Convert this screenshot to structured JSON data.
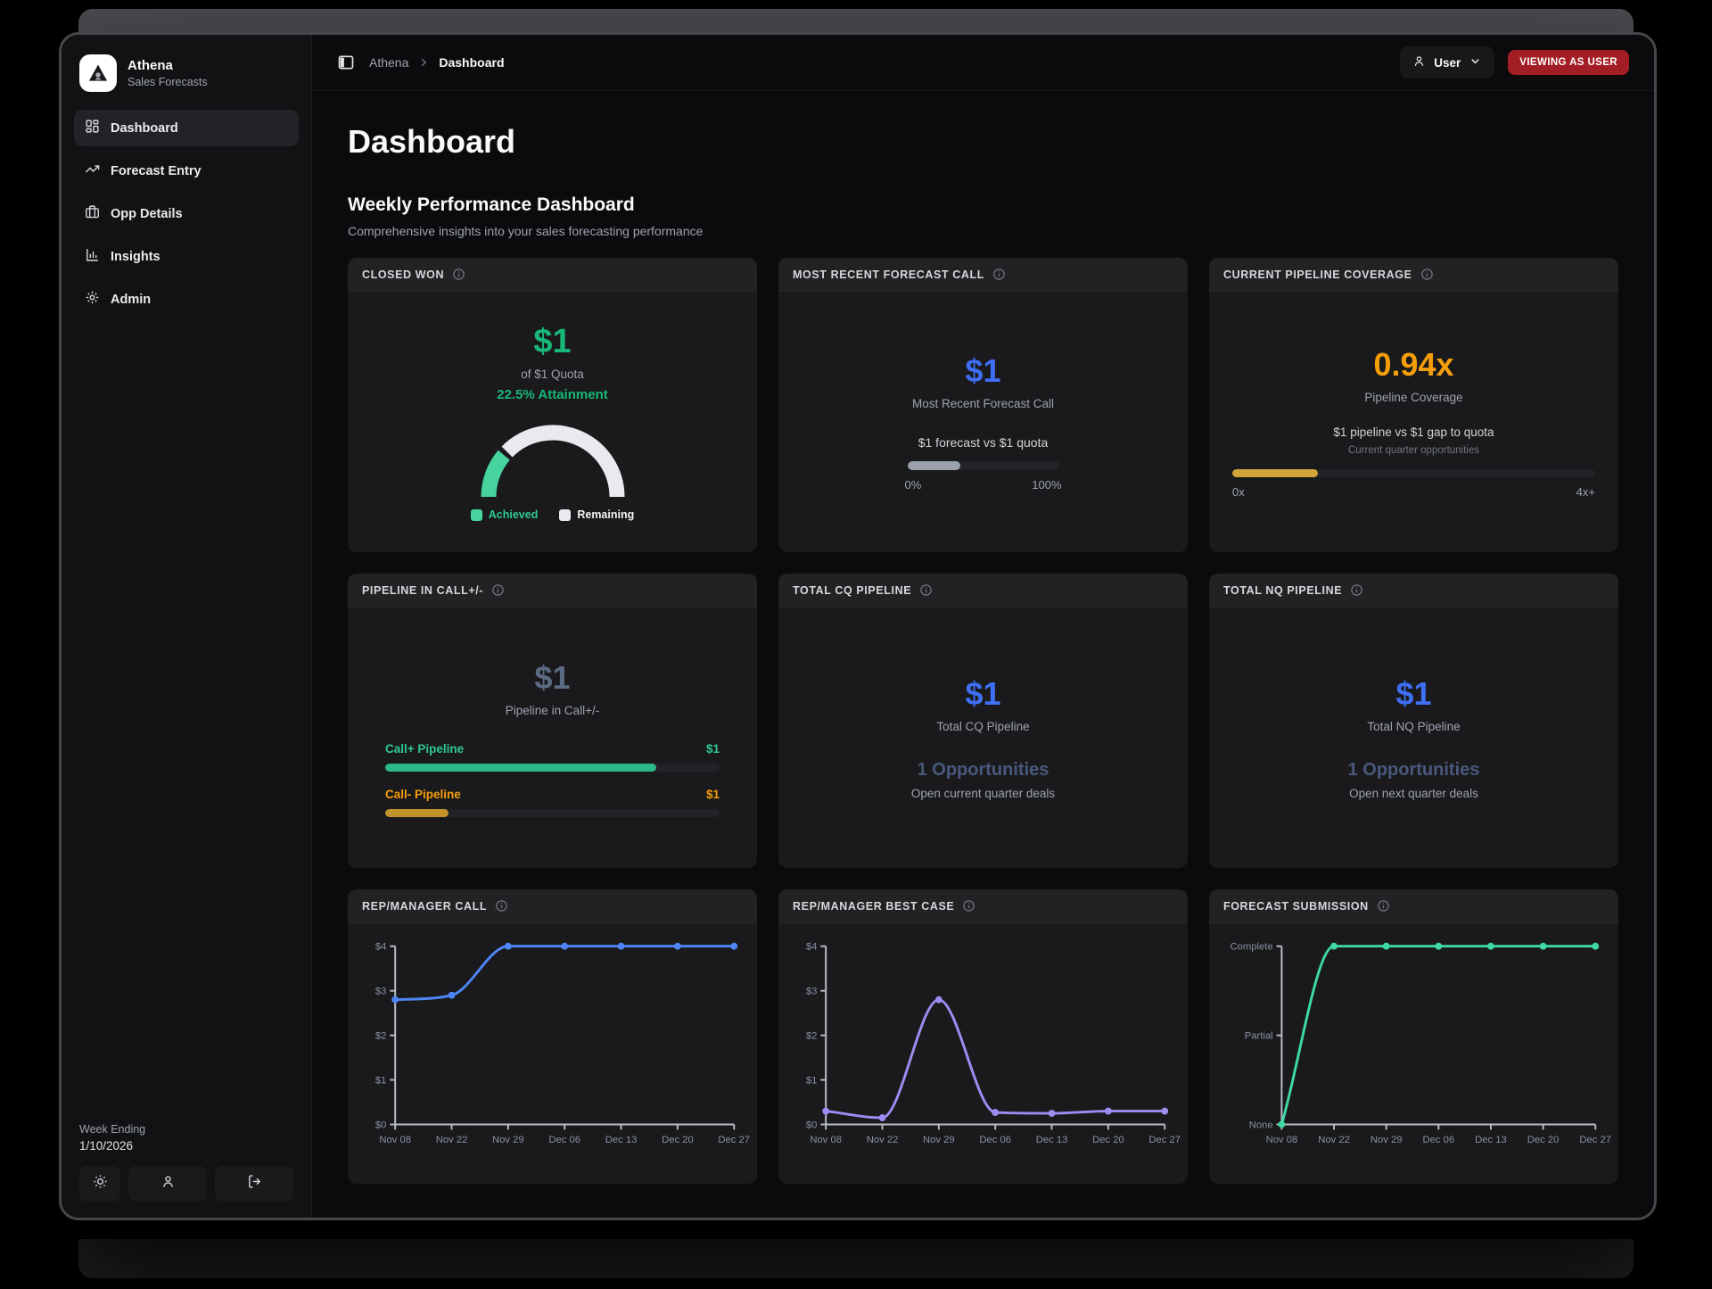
{
  "sidebar": {
    "brand": {
      "name": "Athena",
      "subtitle": "Sales Forecasts"
    },
    "items": [
      {
        "label": "Dashboard",
        "icon": "dashboard-grid-icon",
        "active": true
      },
      {
        "label": "Forecast Entry",
        "icon": "trending-up-icon",
        "active": false
      },
      {
        "label": "Opp Details",
        "icon": "briefcase-icon",
        "active": false
      },
      {
        "label": "Insights",
        "icon": "bar-chart-icon",
        "active": false
      },
      {
        "label": "Admin",
        "icon": "gear-icon",
        "active": false
      }
    ],
    "footer": {
      "week_ending_label": "Week Ending",
      "week_ending_date": "1/10/2026",
      "buttons": [
        "sun-icon",
        "user-icon",
        "logout-icon"
      ]
    }
  },
  "header": {
    "breadcrumb": {
      "root": "Athena",
      "current": "Dashboard"
    },
    "user_menu": {
      "label": "User"
    },
    "badge": {
      "label": "VIEWING AS USER",
      "color": "#a31d24"
    }
  },
  "page": {
    "title": "Dashboard",
    "section_title": "Weekly Performance Dashboard",
    "section_subtitle": "Comprehensive insights into your sales forecasting performance"
  },
  "cards": {
    "closed_won": {
      "title": "CLOSED WON",
      "value": "$1",
      "quota_line": "of $1 Quota",
      "attainment_line": "22.5% Attainment",
      "attainment_pct": 22.5,
      "value_color": "#17b877",
      "legend": [
        {
          "label": "Achieved",
          "swatch": "#46d39e",
          "text_color": "#2fc98f"
        },
        {
          "label": "Remaining",
          "swatch": "#e8eaed",
          "text_color": "#f4f4f5"
        }
      ]
    },
    "forecast_call": {
      "title": "MOST RECENT FORECAST CALL",
      "value": "$1",
      "label": "Most Recent Forecast Call",
      "compare_line": "$1 forecast vs $1 quota",
      "progress_pct": 35,
      "min_label": "0%",
      "max_label": "100%"
    },
    "pipeline_coverage": {
      "title": "CURRENT PIPELINE COVERAGE",
      "value": "0.94x",
      "label": "Pipeline Coverage",
      "compare_line": "$1 pipeline vs $1 gap to quota",
      "sub_label": "Current quarter opportunities",
      "progress_pct": 23.5,
      "min_label": "0x",
      "max_label": "4x+",
      "value_color": "#f59e0b"
    },
    "pipeline_call": {
      "title": "PIPELINE IN CALL+/-",
      "value": "$1",
      "label": "Pipeline in Call+/-",
      "bars": [
        {
          "label": "Call+ Pipeline",
          "value": "$1",
          "pct": 81,
          "color": "#2db98a",
          "text_color": "#2fc98f"
        },
        {
          "label": "Call- Pipeline",
          "value": "$1",
          "pct": 19,
          "color": "#c3932b",
          "text_color": "#f59e0b"
        }
      ]
    },
    "total_cq": {
      "title": "TOTAL CQ PIPELINE",
      "value": "$1",
      "label": "Total CQ Pipeline",
      "opps_line": "1 Opportunities",
      "sub_label": "Open current quarter deals"
    },
    "total_nq": {
      "title": "TOTAL NQ PIPELINE",
      "value": "$1",
      "label": "Total NQ Pipeline",
      "opps_line": "1 Opportunities",
      "sub_label": "Open next quarter deals"
    },
    "rep_call": {
      "title": "REP/MANAGER CALL"
    },
    "best_case": {
      "title": "REP/MANAGER BEST CASE"
    },
    "submission": {
      "title": "FORECAST SUBMISSION"
    }
  },
  "chart_data": [
    {
      "id": "rep-manager-call",
      "type": "line",
      "title": "REP/MANAGER CALL",
      "x": [
        "Nov 08",
        "Nov 22",
        "Nov 29",
        "Dec 06",
        "Dec 13",
        "Dec 20",
        "Dec 27"
      ],
      "values": [
        2.8,
        2.9,
        4,
        4,
        4,
        4,
        4
      ],
      "ylim": [
        0,
        4
      ],
      "y_ticks": [
        {
          "value": 0,
          "label": "$0"
        },
        {
          "value": 1,
          "label": "$1"
        },
        {
          "value": 2,
          "label": "$2"
        },
        {
          "value": 3,
          "label": "$3"
        },
        {
          "value": 4,
          "label": "$4"
        }
      ],
      "color": "#4d87f5",
      "grid": false,
      "legend": "none"
    },
    {
      "id": "rep-manager-best-case",
      "type": "line",
      "title": "REP/MANAGER BEST CASE",
      "x": [
        "Nov 08",
        "Nov 22",
        "Nov 29",
        "Dec 06",
        "Dec 13",
        "Dec 20",
        "Dec 27"
      ],
      "values": [
        0.3,
        0.15,
        2.8,
        0.27,
        0.25,
        0.3,
        0.3
      ],
      "ylim": [
        0,
        4
      ],
      "y_ticks": [
        {
          "value": 0,
          "label": "$0"
        },
        {
          "value": 1,
          "label": "$1"
        },
        {
          "value": 2,
          "label": "$2"
        },
        {
          "value": 3,
          "label": "$3"
        },
        {
          "value": 4,
          "label": "$4"
        }
      ],
      "color": "#9d8cf2",
      "grid": false,
      "legend": "none"
    },
    {
      "id": "forecast-submission",
      "type": "line",
      "title": "FORECAST SUBMISSION",
      "x": [
        "Nov 08",
        "Nov 22",
        "Nov 29",
        "Dec 06",
        "Dec 13",
        "Dec 20",
        "Dec 27"
      ],
      "values": [
        0,
        2,
        2,
        2,
        2,
        2,
        2
      ],
      "ylim": [
        0,
        2
      ],
      "y_ticks": [
        {
          "value": 0,
          "label": "None"
        },
        {
          "value": 1,
          "label": "Partial"
        },
        {
          "value": 2,
          "label": "Complete"
        }
      ],
      "color": "#3ed9a4",
      "grid": false,
      "legend": "none"
    }
  ]
}
